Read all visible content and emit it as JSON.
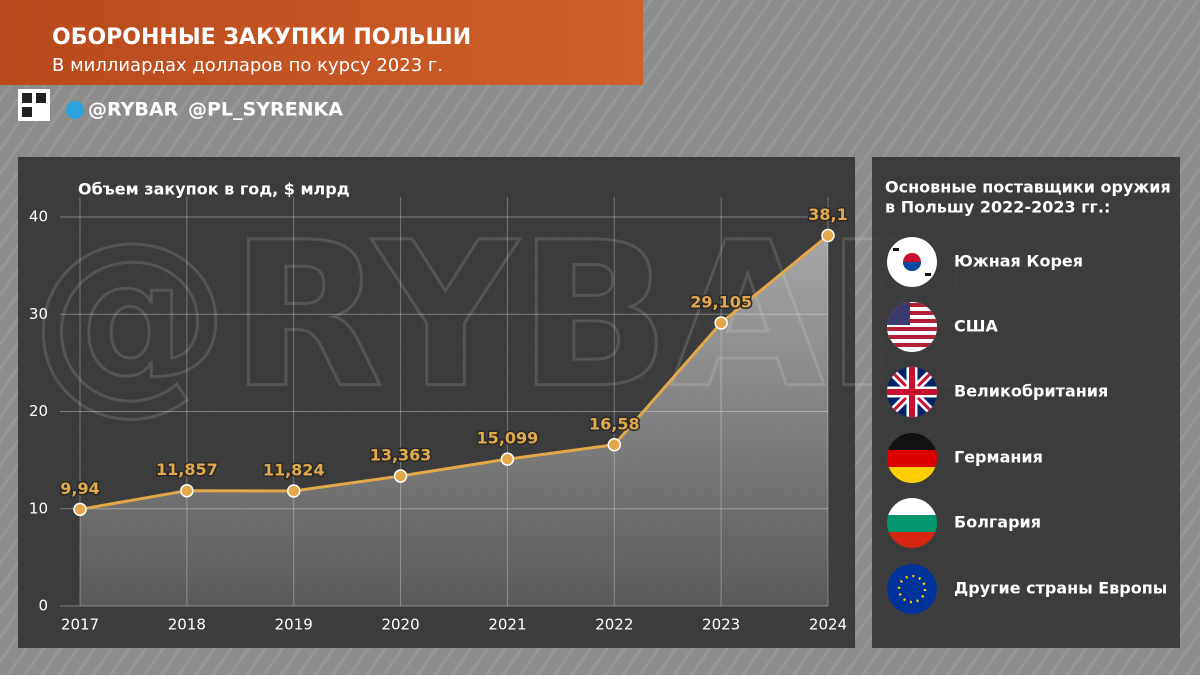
{
  "header": {
    "title": "ОБОРОННЫЕ ЗАКУПКИ ПОЛЬШИ",
    "subtitle": "В миллиардах долларов по курсу 2023 г."
  },
  "handles": [
    "@RYBAR",
    "@PL_SYRENKA"
  ],
  "suppliers": {
    "title_lines": [
      "Основные поставщики оружия",
      "в Польшу 2022-2023 гг.:"
    ],
    "items": [
      "Южная Корея",
      "США",
      "Великобритания",
      "Германия",
      "Болгария",
      "Другие страны Европы"
    ]
  },
  "chart_data": {
    "type": "line",
    "title": "Объем закупок в год, $ млрд",
    "categories": [
      "2017",
      "2018",
      "2019",
      "2020",
      "2021",
      "2022",
      "2023",
      "2024"
    ],
    "values": [
      9.94,
      11.857,
      11.824,
      13.363,
      15.099,
      16.58,
      29.105,
      38.1
    ],
    "value_labels": [
      "9,94",
      "11,857",
      "11,824",
      "13,363",
      "15,099",
      "16,58",
      "29,105",
      "38,1"
    ],
    "color": "#e2a84c",
    "ylim": [
      0,
      40
    ],
    "yticks": [
      0,
      10,
      20,
      30,
      40
    ],
    "grid": true
  }
}
